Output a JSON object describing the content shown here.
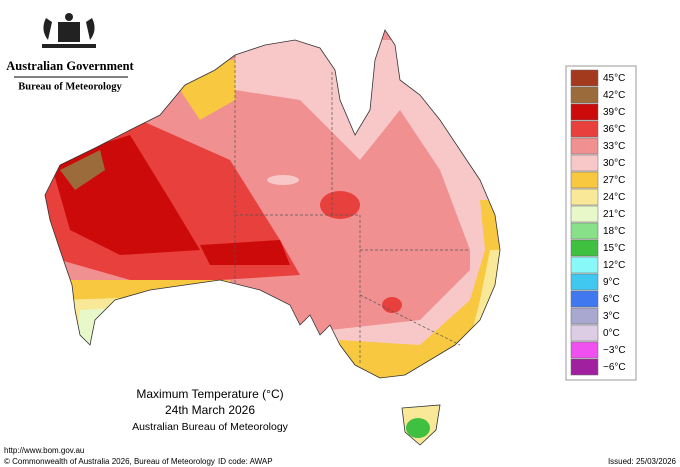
{
  "header": {
    "government": "Australian Government",
    "agency": "Bureau of Meteorology"
  },
  "legend": {
    "entries": [
      {
        "label": "45°C",
        "color": "#a33a1e"
      },
      {
        "label": "42°C",
        "color": "#9c6b3c"
      },
      {
        "label": "39°C",
        "color": "#cc0a0a"
      },
      {
        "label": "36°C",
        "color": "#e8403c"
      },
      {
        "label": "33°C",
        "color": "#f09090"
      },
      {
        "label": "30°C",
        "color": "#f8c8c8"
      },
      {
        "label": "27°C",
        "color": "#f8c840"
      },
      {
        "label": "24°C",
        "color": "#f8e898"
      },
      {
        "label": "21°C",
        "color": "#e8f8c8"
      },
      {
        "label": "18°C",
        "color": "#88e088"
      },
      {
        "label": "15°C",
        "color": "#40c040"
      },
      {
        "label": "12°C",
        "color": "#88f8f8"
      },
      {
        "label": "9°C",
        "color": "#40c8f0"
      },
      {
        "label": "6°C",
        "color": "#4078f0"
      },
      {
        "label": "3°C",
        "color": "#a8a8d0"
      },
      {
        "label": "0°C",
        "color": "#dccce4"
      },
      {
        "label": "−3°C",
        "color": "#f050f0"
      },
      {
        "label": "−6°C",
        "color": "#a020a0"
      }
    ]
  },
  "caption": {
    "title": "Maximum Temperature (°C)",
    "date": "24th March 2026",
    "source": "Australian Bureau of Meteorology"
  },
  "footer": {
    "url": "http://www.bom.gov.au",
    "copyright": "© Commonwealth of Australia 2026, Bureau of Meteorology",
    "id_code": "ID code: AWAP",
    "issued": "Issued: 25/03/2026"
  }
}
